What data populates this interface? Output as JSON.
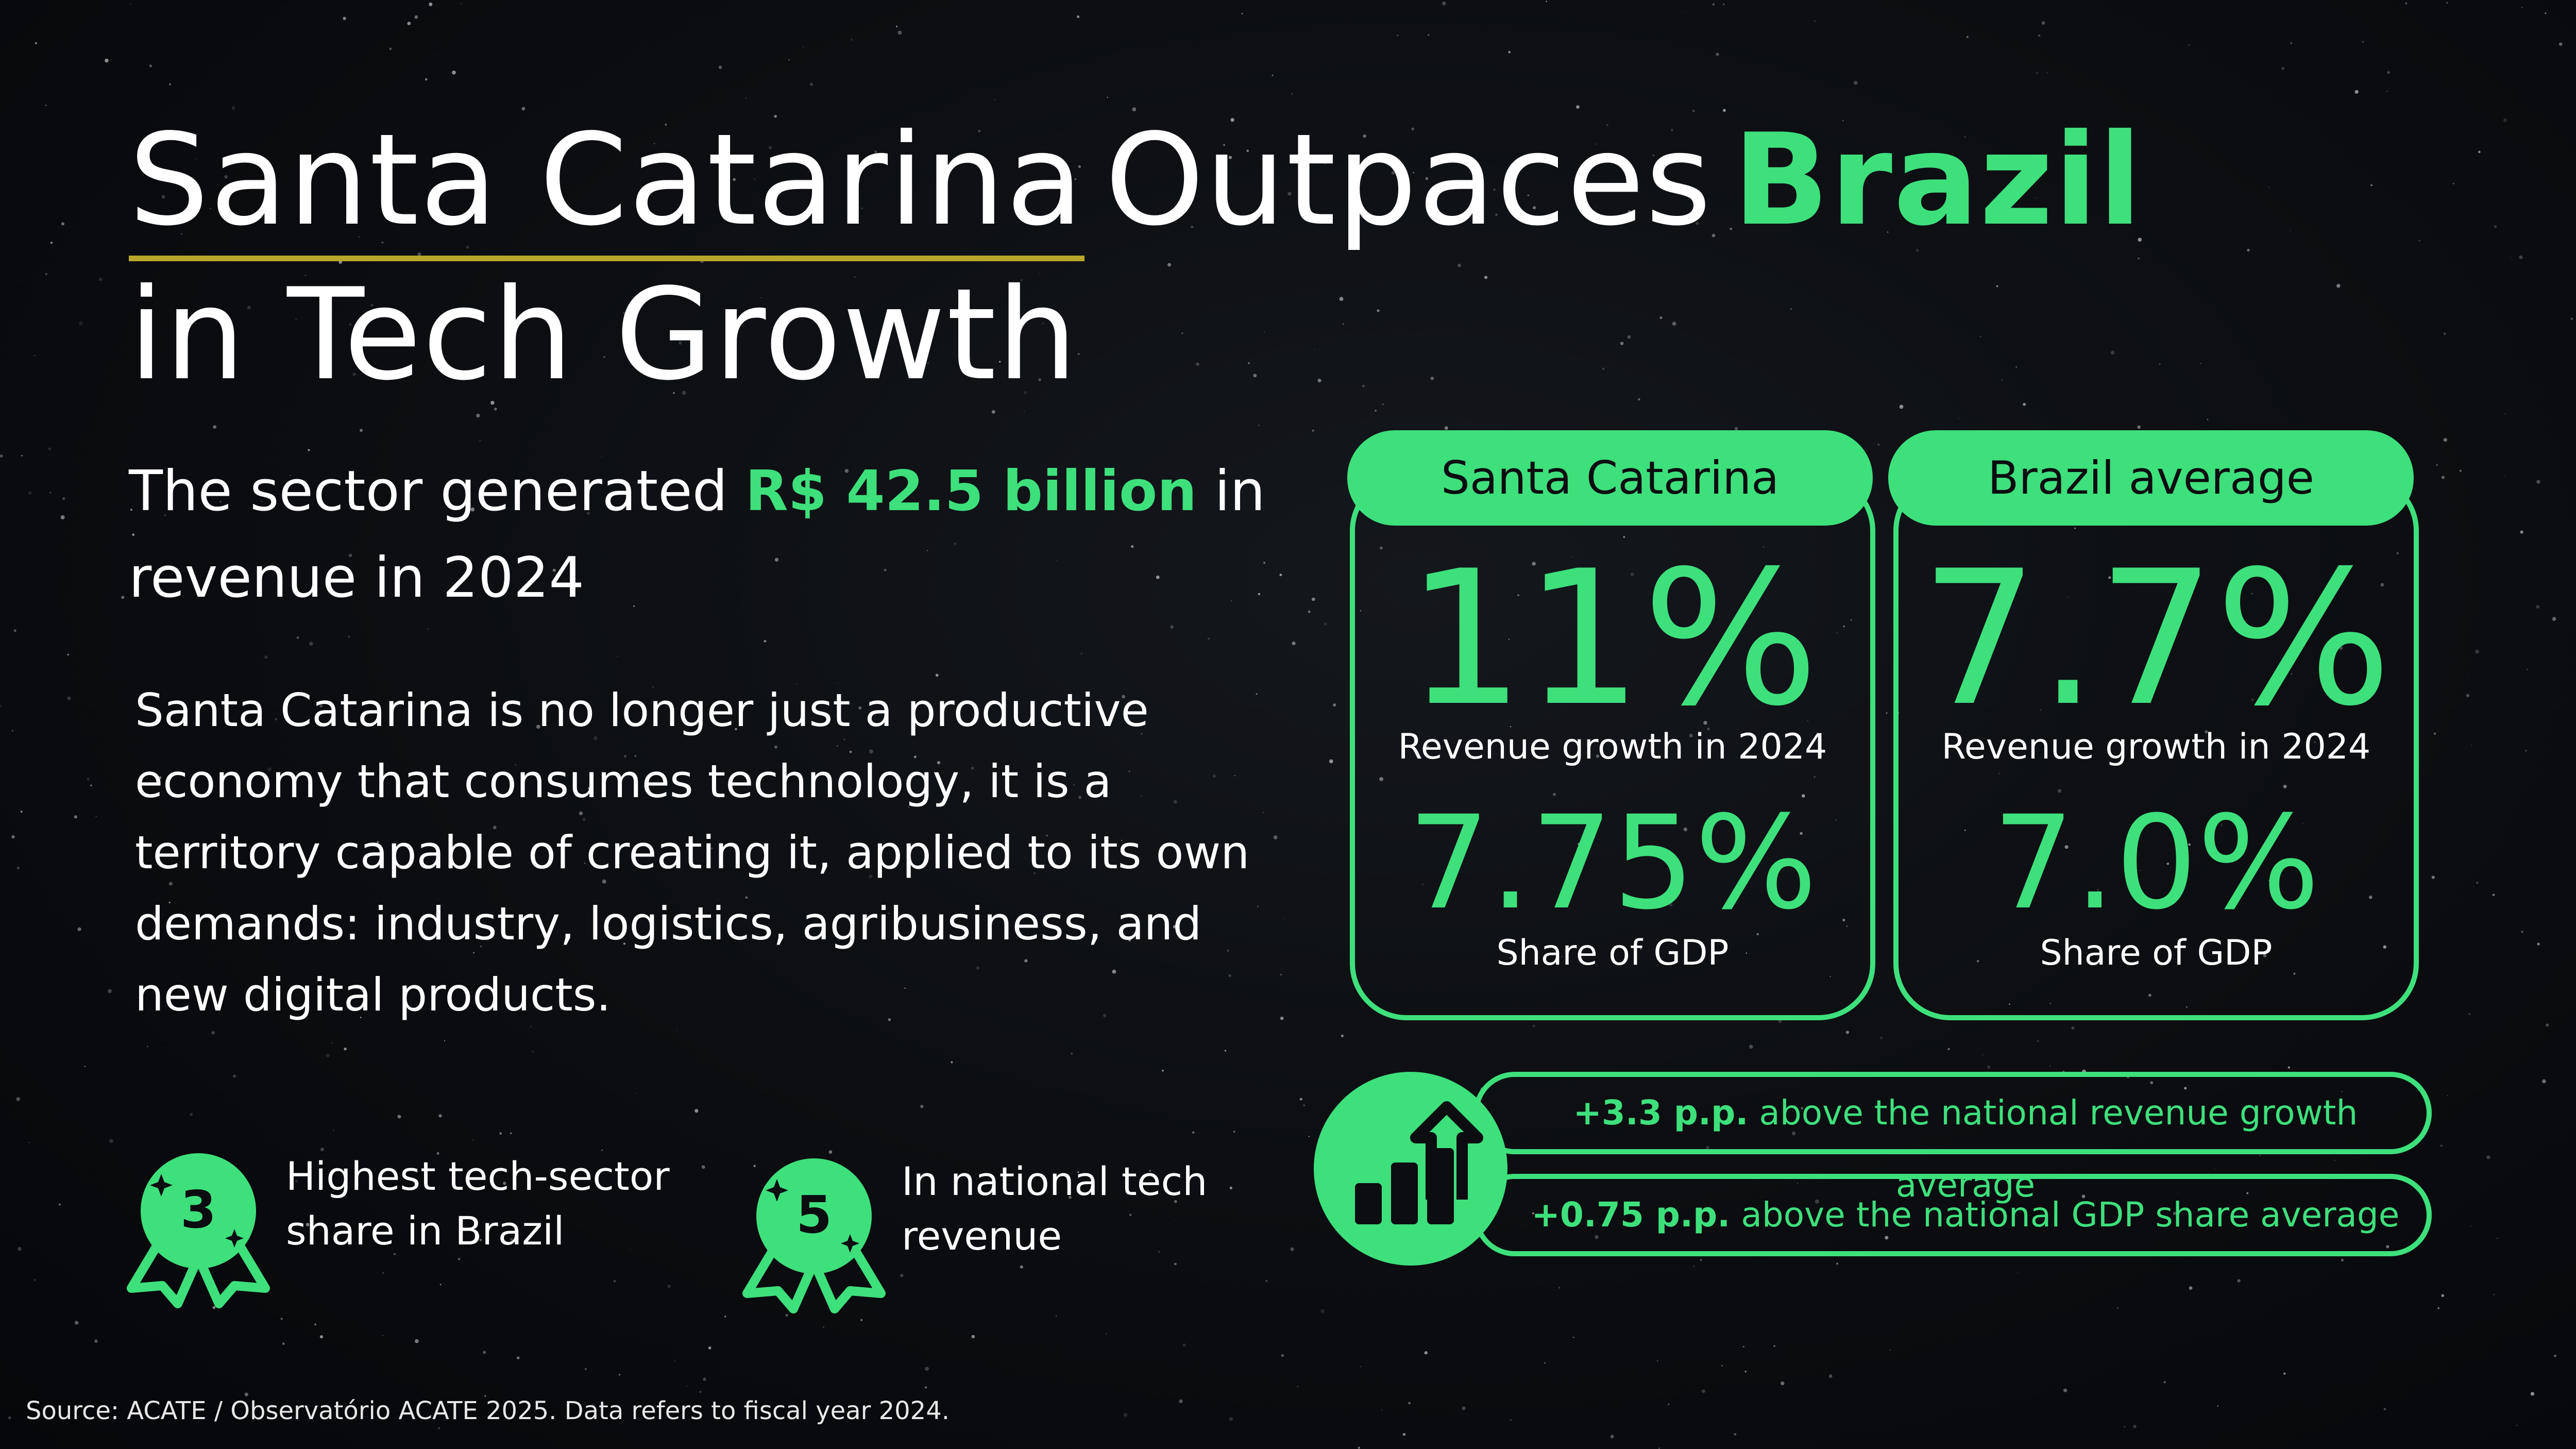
{
  "title": {
    "part1": "Santa Catarina",
    "part2": "Outpaces",
    "part3": "Brazil",
    "line2": "in Tech Growth"
  },
  "subtitle": {
    "prefix": "The sector generated ",
    "highlight": "R$ 42.5 billion",
    "suffix": " in revenue in 2024"
  },
  "body": "Santa Catarina is no longer just a productive economy that consumes technology, it is a territory capable of creating it, applied to its own demands: industry, logistics, agribusiness, and new digital products.",
  "badges": [
    {
      "rank": "3",
      "text": "Highest tech-sector share in Brazil",
      "icon": "award-ribbon-icon"
    },
    {
      "rank": "5",
      "text": "In national tech revenue",
      "icon": "award-ribbon-icon"
    }
  ],
  "cards": [
    {
      "label": "Santa Catarina",
      "stat1": "11%",
      "caption1": "Revenue growth in 2024",
      "stat2": "7.75%",
      "caption2": "Share of GDP"
    },
    {
      "label": "Brazil average",
      "stat1": "7.7%",
      "caption1": "Revenue growth in 2024",
      "stat2": "7.0%",
      "caption2": "Share of GDP"
    }
  ],
  "comparisons": [
    {
      "bold": "+3.3 p.p.",
      "text": " above the national revenue growth average"
    },
    {
      "bold": "+0.75 p.p.",
      "text": " above the national GDP share average"
    }
  ],
  "growth_icon": "bar-chart-growth-icon",
  "colors": {
    "accent": "#3ee07c",
    "underline": "#b8a72a",
    "background": "#0b0d10"
  },
  "source": "Source: ACATE / Observatório ACATE 2025. Data refers to fiscal year 2024."
}
